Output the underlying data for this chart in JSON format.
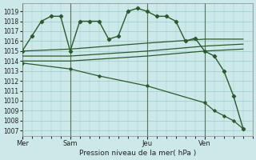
{
  "xlabel": "Pression niveau de la mer( hPa )",
  "ylim": [
    1006.5,
    1019.8
  ],
  "yticks": [
    1007,
    1008,
    1009,
    1010,
    1011,
    1012,
    1013,
    1014,
    1015,
    1016,
    1017,
    1018,
    1019
  ],
  "bg_color": "#cce8e8",
  "grid_color": "#99cccc",
  "line_color": "#2d5a2d",
  "xtick_labels": [
    "Mer",
    "Sam",
    "Jeu",
    "Ven"
  ],
  "xtick_positions": [
    0,
    5,
    13,
    19
  ],
  "vline_positions": [
    0,
    5,
    13,
    19
  ],
  "xlim": [
    0,
    24
  ],
  "series1_x": [
    0,
    1,
    2,
    3,
    4,
    5,
    6,
    7,
    8,
    9,
    10,
    11,
    12,
    13,
    14,
    15,
    16,
    17,
    18,
    19,
    20,
    21,
    22,
    23
  ],
  "series1_y": [
    1015.0,
    1016.5,
    1018.0,
    1018.5,
    1018.5,
    1015.0,
    1018.0,
    1018.0,
    1018.0,
    1016.2,
    1016.5,
    1019.0,
    1019.3,
    1019.0,
    1018.5,
    1018.5,
    1018.0,
    1016.0,
    1016.3,
    1015.0,
    1014.5,
    1013.0,
    1010.5,
    1007.2
  ],
  "series2_x": [
    0,
    5,
    13,
    19,
    23
  ],
  "series2_y": [
    1015.0,
    1015.2,
    1015.8,
    1016.2,
    1016.2
  ],
  "series3_x": [
    0,
    5,
    13,
    19,
    23
  ],
  "series3_y": [
    1014.5,
    1014.5,
    1015.0,
    1015.5,
    1015.7
  ],
  "series4_x": [
    0,
    5,
    13,
    19,
    23
  ],
  "series4_y": [
    1014.0,
    1014.0,
    1014.5,
    1015.0,
    1015.2
  ],
  "series5_x": [
    0,
    5,
    8,
    13,
    19,
    20,
    21,
    22,
    23
  ],
  "series5_y": [
    1013.8,
    1013.2,
    1012.5,
    1011.5,
    1009.8,
    1009.0,
    1008.5,
    1008.0,
    1007.2
  ]
}
